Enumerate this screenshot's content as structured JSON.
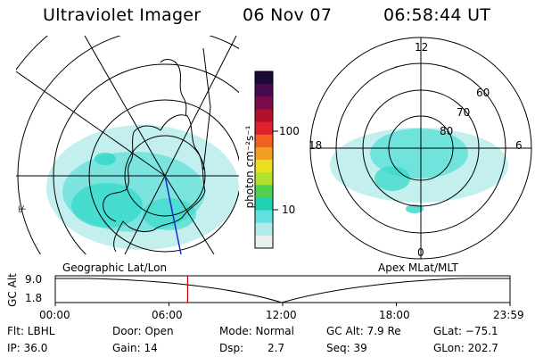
{
  "header": {
    "instrument": "Ultraviolet Imager",
    "date": "06 Nov 07",
    "time": "06:58:44 UT"
  },
  "colorbar": {
    "unit_label": "photon cm⁻²s⁻¹",
    "ticks": [
      "100",
      "10"
    ],
    "colors": [
      "#1a0a3a",
      "#4a0a52",
      "#7a0a4a",
      "#b0102a",
      "#e0202a",
      "#f06020",
      "#f0a020",
      "#e8e020",
      "#b0e030",
      "#50d050",
      "#20d0b0",
      "#60e0e0",
      "#b0eaea",
      "#e8f0f0"
    ]
  },
  "left_panel": {
    "label": "Geographic Lat/Lon"
  },
  "right_panel": {
    "label": "Apex MLat/MLT",
    "mlt_labels": {
      "top": "12",
      "left": "18",
      "right": "6",
      "bottom": "0"
    },
    "lat_labels": [
      "80",
      "70",
      "60"
    ]
  },
  "altitude_plot": {
    "ylabel": "GC Alt",
    "y_ticks": [
      "9.0",
      "1.8"
    ],
    "x_ticks": [
      "00:00",
      "06:00",
      "12:00",
      "18:00",
      "23:59"
    ],
    "current_time_fraction": 0.291,
    "marker_color": "#cc0000"
  },
  "info": {
    "filter": "Flt: LBHL",
    "door": "Door: Open",
    "mode": "Mode: Normal",
    "gc_alt": "GC Alt: 7.9 Re",
    "glat": "GLat: −75.1",
    "ip": "IP: 36.0",
    "gain": "Gain: 14",
    "dsp_label": "Dsp:",
    "dsp_value": "2.7",
    "seq": "Seq: 39",
    "glon": "GLon: 202.7"
  },
  "auroral_color": "#30d8c8"
}
